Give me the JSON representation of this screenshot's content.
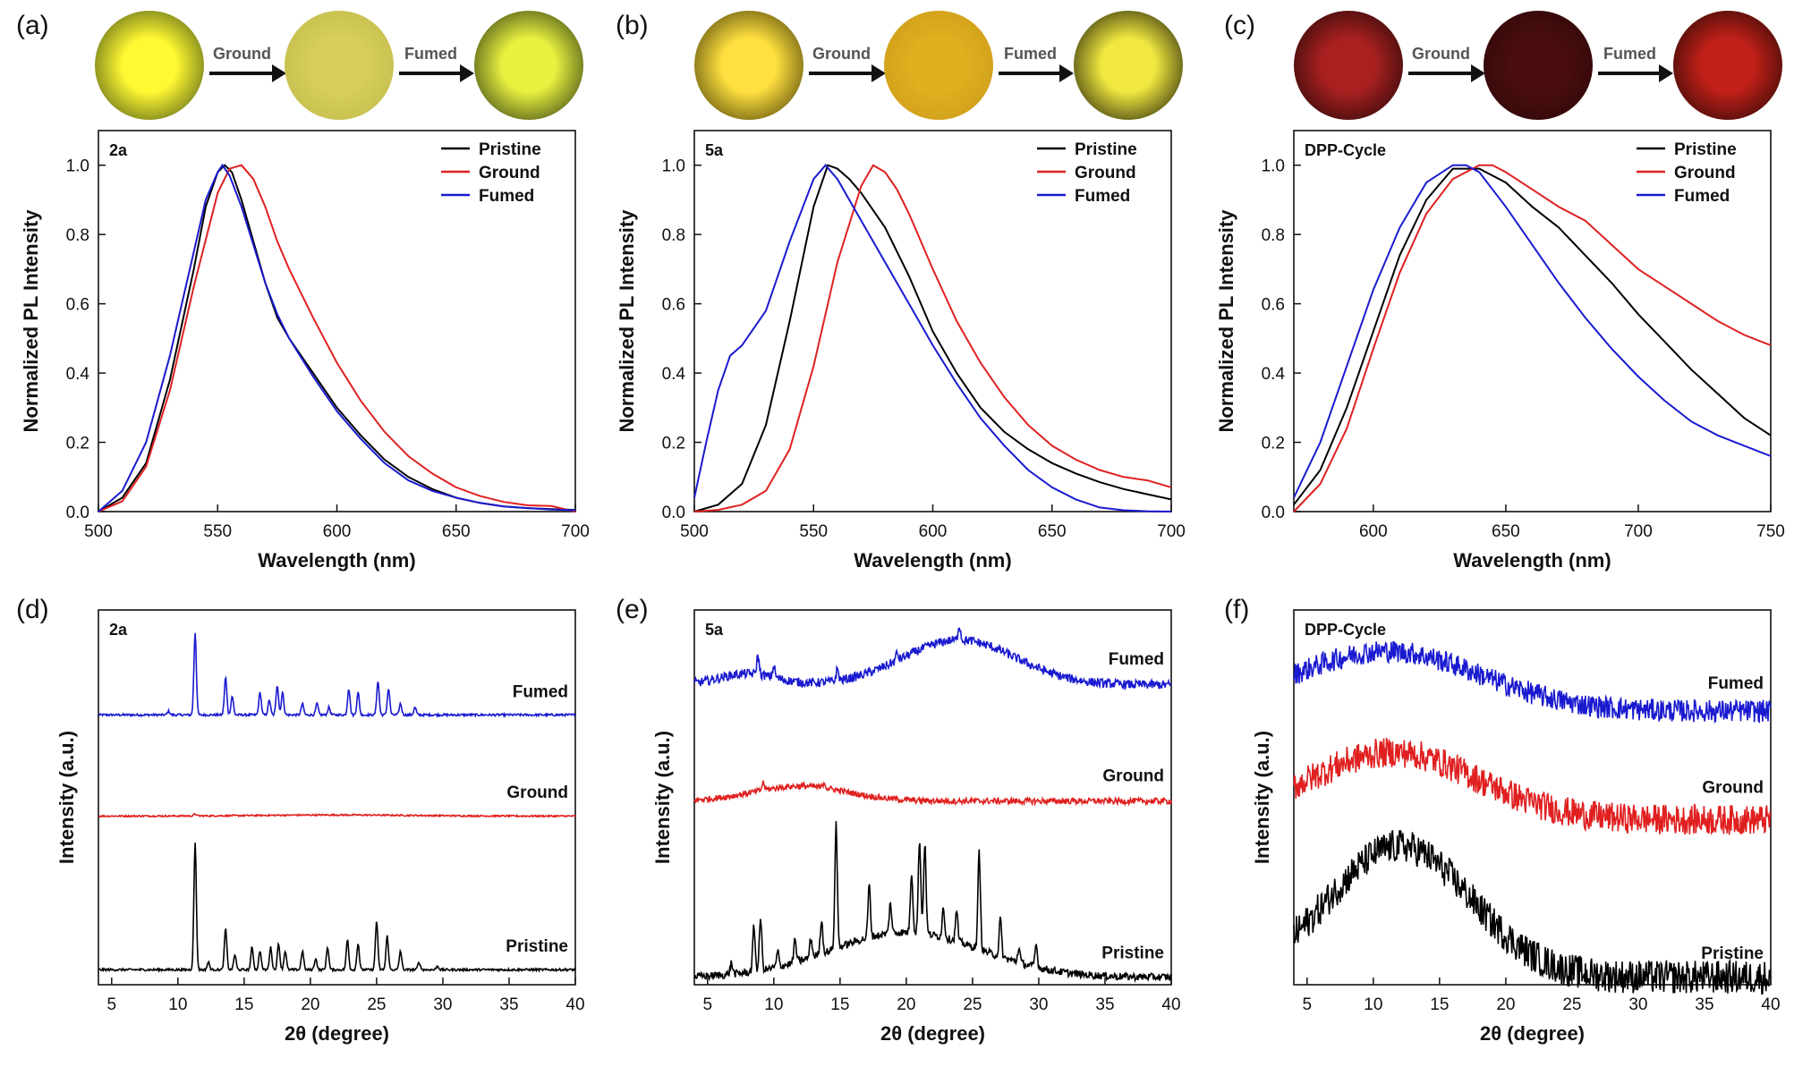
{
  "panel_labels": [
    "(a)",
    "(b)",
    "(c)",
    "(d)",
    "(e)",
    "(f)"
  ],
  "photo_strips": [
    {
      "arrow1": "Ground",
      "arrow2": "Fumed",
      "colors": [
        [
          "#fff833",
          "#3a4a10"
        ],
        [
          "#d7cf5a",
          "#c0b84a"
        ],
        [
          "#e8f040",
          "#1e2a0a"
        ]
      ]
    },
    {
      "arrow1": "Ground",
      "arrow2": "Fumed",
      "colors": [
        [
          "#ffe040",
          "#3a3000"
        ],
        [
          "#e0b020",
          "#c89818"
        ],
        [
          "#f0e840",
          "#0a0a00"
        ]
      ]
    },
    {
      "arrow1": "Ground",
      "arrow2": "Fumed",
      "colors": [
        [
          "#a82020",
          "#1a0505"
        ],
        [
          "#4a0e0e",
          "#2a0606"
        ],
        [
          "#c02018",
          "#1a0505"
        ]
      ]
    }
  ],
  "series_colors": {
    "Pristine": "#000000",
    "Ground": "#e02020",
    "Fumed": "#1a1ad0"
  },
  "chart_data": [
    {
      "type": "line",
      "compound": "2a",
      "xlabel": "Wavelength (nm)",
      "ylabel": "Normalized PL Intensity",
      "xlim": [
        500,
        700
      ],
      "ylim": [
        0,
        1.1
      ],
      "xticks": [
        "500",
        "550",
        "600",
        "650",
        "700"
      ],
      "yticks": [
        "0.0",
        "0.2",
        "0.4",
        "0.6",
        "0.8",
        "1.0"
      ],
      "legend": "top-right",
      "series": [
        {
          "name": "Pristine",
          "x": [
            500,
            510,
            520,
            530,
            540,
            545,
            550,
            553,
            556,
            560,
            565,
            570,
            575,
            580,
            590,
            600,
            610,
            620,
            630,
            640,
            650,
            660,
            670,
            680,
            690,
            700
          ],
          "y": [
            0,
            0.04,
            0.14,
            0.38,
            0.7,
            0.88,
            0.98,
            1.0,
            0.98,
            0.9,
            0.78,
            0.66,
            0.56,
            0.5,
            0.4,
            0.3,
            0.22,
            0.15,
            0.1,
            0.065,
            0.04,
            0.025,
            0.015,
            0.01,
            0.007,
            0.005
          ]
        },
        {
          "name": "Ground",
          "x": [
            500,
            510,
            520,
            530,
            540,
            550,
            555,
            560,
            565,
            570,
            575,
            580,
            590,
            600,
            610,
            620,
            630,
            640,
            650,
            660,
            670,
            680,
            690,
            700
          ],
          "y": [
            0,
            0.03,
            0.13,
            0.35,
            0.65,
            0.92,
            0.99,
            1.0,
            0.96,
            0.88,
            0.78,
            0.7,
            0.56,
            0.43,
            0.32,
            0.23,
            0.16,
            0.11,
            0.07,
            0.045,
            0.028,
            0.018,
            0.016,
            0.0
          ]
        },
        {
          "name": "Fumed",
          "x": [
            500,
            510,
            520,
            530,
            540,
            545,
            550,
            552,
            555,
            560,
            565,
            570,
            575,
            580,
            590,
            600,
            610,
            620,
            630,
            640,
            650,
            660,
            670,
            680,
            690,
            700
          ],
          "y": [
            0,
            0.06,
            0.2,
            0.45,
            0.75,
            0.9,
            0.98,
            1.0,
            0.97,
            0.88,
            0.77,
            0.66,
            0.57,
            0.5,
            0.39,
            0.29,
            0.21,
            0.14,
            0.09,
            0.06,
            0.04,
            0.025,
            0.015,
            0.01,
            0.006,
            0.004
          ]
        }
      ]
    },
    {
      "type": "line",
      "compound": "5a",
      "xlabel": "Wavelength (nm)",
      "ylabel": "Normalized PL Intensity",
      "xlim": [
        500,
        700
      ],
      "ylim": [
        0,
        1.1
      ],
      "xticks": [
        "500",
        "550",
        "600",
        "650",
        "700"
      ],
      "yticks": [
        "0.0",
        "0.2",
        "0.4",
        "0.6",
        "0.8",
        "1.0"
      ],
      "legend": "top-right",
      "series": [
        {
          "name": "Pristine",
          "x": [
            500,
            510,
            520,
            530,
            540,
            550,
            556,
            560,
            565,
            570,
            580,
            590,
            600,
            610,
            620,
            630,
            640,
            650,
            660,
            670,
            680,
            690,
            700
          ],
          "y": [
            0,
            0.02,
            0.08,
            0.25,
            0.55,
            0.88,
            1.0,
            0.99,
            0.96,
            0.92,
            0.82,
            0.68,
            0.52,
            0.4,
            0.3,
            0.23,
            0.18,
            0.14,
            0.11,
            0.085,
            0.065,
            0.05,
            0.035
          ]
        },
        {
          "name": "Ground",
          "x": [
            500,
            510,
            520,
            530,
            540,
            550,
            560,
            570,
            575,
            580,
            585,
            590,
            600,
            610,
            620,
            630,
            640,
            650,
            660,
            670,
            680,
            690,
            700
          ],
          "y": [
            0,
            0.005,
            0.02,
            0.06,
            0.18,
            0.42,
            0.72,
            0.94,
            1.0,
            0.98,
            0.93,
            0.86,
            0.7,
            0.55,
            0.43,
            0.33,
            0.25,
            0.19,
            0.15,
            0.12,
            0.1,
            0.09,
            0.07
          ]
        },
        {
          "name": "Fumed",
          "x": [
            500,
            505,
            510,
            515,
            520,
            530,
            540,
            550,
            555,
            560,
            565,
            570,
            580,
            590,
            600,
            610,
            620,
            630,
            640,
            650,
            660,
            670,
            680,
            690,
            700
          ],
          "y": [
            0.04,
            0.2,
            0.35,
            0.45,
            0.48,
            0.58,
            0.78,
            0.96,
            1.0,
            0.96,
            0.9,
            0.84,
            0.72,
            0.6,
            0.48,
            0.37,
            0.27,
            0.19,
            0.12,
            0.07,
            0.035,
            0.012,
            0.004,
            0.001,
            0.0
          ]
        }
      ]
    },
    {
      "type": "line",
      "compound": "DPP-Cycle",
      "xlabel": "Wavelength (nm)",
      "ylabel": "Normalized PL Intensity",
      "xlim": [
        570,
        750
      ],
      "ylim": [
        0,
        1.1
      ],
      "xticks": [
        "600",
        "650",
        "700",
        "750"
      ],
      "yticks": [
        "0.0",
        "0.2",
        "0.4",
        "0.6",
        "0.8",
        "1.0"
      ],
      "legend": "top-right",
      "series": [
        {
          "name": "Pristine",
          "x": [
            570,
            580,
            590,
            600,
            610,
            620,
            630,
            640,
            650,
            660,
            670,
            680,
            690,
            700,
            710,
            720,
            730,
            740,
            750
          ],
          "y": [
            0.02,
            0.12,
            0.3,
            0.52,
            0.74,
            0.9,
            0.99,
            0.99,
            0.95,
            0.88,
            0.82,
            0.74,
            0.66,
            0.57,
            0.49,
            0.41,
            0.34,
            0.27,
            0.22
          ]
        },
        {
          "name": "Ground",
          "x": [
            570,
            580,
            590,
            600,
            610,
            620,
            630,
            640,
            645,
            650,
            660,
            670,
            680,
            690,
            700,
            710,
            720,
            730,
            740,
            750
          ],
          "y": [
            0.0,
            0.08,
            0.24,
            0.47,
            0.69,
            0.86,
            0.96,
            1.0,
            1.0,
            0.98,
            0.93,
            0.88,
            0.84,
            0.77,
            0.7,
            0.65,
            0.6,
            0.55,
            0.51,
            0.48
          ]
        },
        {
          "name": "Fumed",
          "x": [
            570,
            580,
            590,
            600,
            610,
            620,
            630,
            635,
            640,
            650,
            660,
            670,
            680,
            690,
            700,
            710,
            720,
            730,
            740,
            750
          ],
          "y": [
            0.04,
            0.2,
            0.42,
            0.64,
            0.82,
            0.95,
            1.0,
            1.0,
            0.98,
            0.88,
            0.77,
            0.66,
            0.56,
            0.47,
            0.39,
            0.32,
            0.26,
            0.22,
            0.19,
            0.16
          ]
        }
      ]
    },
    {
      "type": "line",
      "compound": "2a",
      "xlabel": "2θ (degree)",
      "ylabel": "Intensity (a.u.)",
      "xlim": [
        4,
        40
      ],
      "xticks": [
        "5",
        "10",
        "15",
        "20",
        "25",
        "30",
        "35",
        "40"
      ],
      "series": [
        {
          "name": "Fumed",
          "baseline": 0.72,
          "noise": 0.003,
          "amorph": [],
          "peaks": [
            [
              9.3,
              0.01
            ],
            [
              11.3,
              0.22
            ],
            [
              13.6,
              0.1
            ],
            [
              14.1,
              0.05
            ],
            [
              16.2,
              0.06
            ],
            [
              16.9,
              0.04
            ],
            [
              17.5,
              0.08
            ],
            [
              17.9,
              0.06
            ],
            [
              19.4,
              0.03
            ],
            [
              20.5,
              0.03
            ],
            [
              21.4,
              0.02
            ],
            [
              22.9,
              0.07
            ],
            [
              23.6,
              0.06
            ],
            [
              25.1,
              0.09
            ],
            [
              25.9,
              0.07
            ],
            [
              26.8,
              0.03
            ],
            [
              27.9,
              0.02
            ]
          ]
        },
        {
          "name": "Ground",
          "baseline": 0.45,
          "noise": 0.002,
          "amorph": [
            [
              22,
              8,
              0.003
            ]
          ],
          "peaks": [
            [
              11.3,
              0.005
            ]
          ]
        },
        {
          "name": "Pristine",
          "baseline": 0.04,
          "noise": 0.003,
          "amorph": [],
          "peaks": [
            [
              11.3,
              0.34
            ],
            [
              12.3,
              0.02
            ],
            [
              13.6,
              0.11
            ],
            [
              14.3,
              0.04
            ],
            [
              15.6,
              0.06
            ],
            [
              16.2,
              0.05
            ],
            [
              17.0,
              0.06
            ],
            [
              17.6,
              0.07
            ],
            [
              18.1,
              0.05
            ],
            [
              19.4,
              0.05
            ],
            [
              20.4,
              0.03
            ],
            [
              21.3,
              0.06
            ],
            [
              22.8,
              0.08
            ],
            [
              23.6,
              0.07
            ],
            [
              25.0,
              0.13
            ],
            [
              25.8,
              0.09
            ],
            [
              26.8,
              0.05
            ],
            [
              28.2,
              0.02
            ],
            [
              29.6,
              0.01
            ]
          ]
        }
      ]
    },
    {
      "type": "line",
      "compound": "5a",
      "xlabel": "2θ (degree)",
      "ylabel": "Intensity (a.u.)",
      "xlim": [
        4,
        40
      ],
      "xticks": [
        "5",
        "10",
        "15",
        "20",
        "25",
        "30",
        "35",
        "40"
      ],
      "series": [
        {
          "name": "Fumed",
          "baseline": 0.8,
          "noise": 0.012,
          "amorph": [
            [
              24,
              6,
              0.12
            ],
            [
              8,
              3,
              0.03
            ]
          ],
          "peaks": [
            [
              8.8,
              0.05
            ],
            [
              10.0,
              0.03
            ],
            [
              14.8,
              0.03
            ],
            [
              19.3,
              0.02
            ],
            [
              24.0,
              0.04
            ]
          ]
        },
        {
          "name": "Ground",
          "baseline": 0.49,
          "noise": 0.008,
          "amorph": [
            [
              12,
              5,
              0.04
            ]
          ],
          "peaks": [
            [
              9.2,
              0.02
            ],
            [
              13.8,
              0.015
            ]
          ]
        },
        {
          "name": "Pristine",
          "baseline": 0.02,
          "noise": 0.01,
          "amorph": [
            [
              20,
              8,
              0.12
            ]
          ],
          "peaks": [
            [
              6.8,
              0.03
            ],
            [
              8.5,
              0.12
            ],
            [
              9.0,
              0.14
            ],
            [
              10.3,
              0.04
            ],
            [
              11.6,
              0.06
            ],
            [
              12.8,
              0.05
            ],
            [
              13.6,
              0.09
            ],
            [
              14.7,
              0.33
            ],
            [
              17.2,
              0.14
            ],
            [
              18.8,
              0.08
            ],
            [
              20.4,
              0.16
            ],
            [
              21.0,
              0.25
            ],
            [
              21.4,
              0.24
            ],
            [
              22.8,
              0.08
            ],
            [
              23.8,
              0.08
            ],
            [
              25.5,
              0.26
            ],
            [
              27.1,
              0.1
            ],
            [
              28.5,
              0.04
            ],
            [
              29.8,
              0.06
            ]
          ]
        }
      ]
    },
    {
      "type": "line",
      "compound": "DPP-Cycle",
      "xlabel": "2θ (degree)",
      "ylabel": "Intensity (a.u.)",
      "xlim": [
        4,
        40
      ],
      "xticks": [
        "5",
        "10",
        "15",
        "20",
        "25",
        "30",
        "35",
        "40"
      ],
      "series": [
        {
          "name": "Fumed",
          "baseline": 0.73,
          "noise": 0.03,
          "amorph": [
            [
              11,
              10,
              0.16
            ]
          ],
          "peaks": []
        },
        {
          "name": "Ground",
          "baseline": 0.44,
          "noise": 0.04,
          "amorph": [
            [
              11.5,
              9,
              0.18
            ]
          ],
          "peaks": []
        },
        {
          "name": "Pristine",
          "baseline": 0.02,
          "noise": 0.045,
          "amorph": [
            [
              12,
              7.5,
              0.35
            ]
          ],
          "peaks": []
        }
      ]
    }
  ]
}
